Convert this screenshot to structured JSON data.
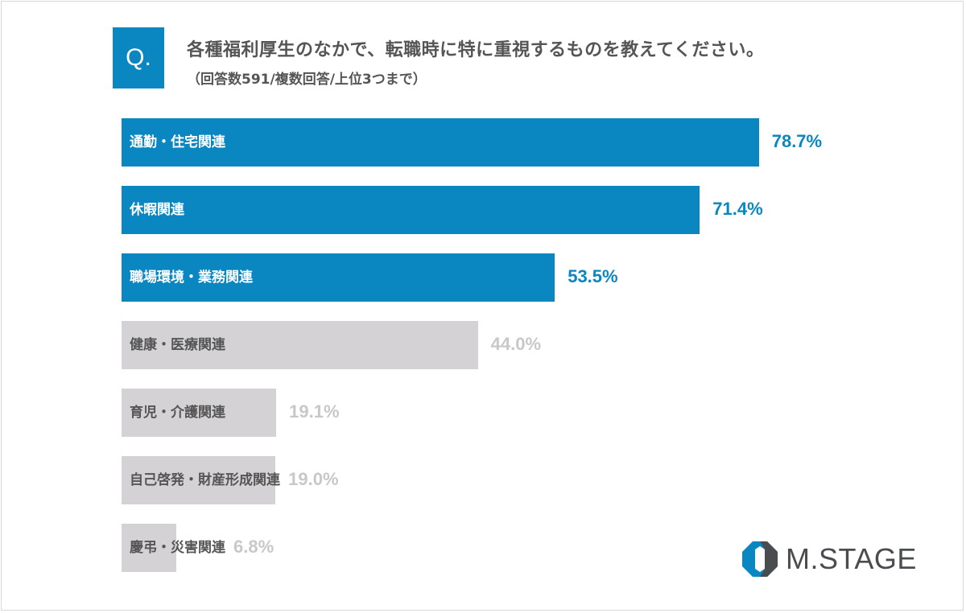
{
  "question_mark": "Q.",
  "chart_data": {
    "type": "bar",
    "orientation": "horizontal",
    "title": "各種福利厚生のなかで、転職時に特に重視するものを教えてください。",
    "subtitle": "（回答数591/複数回答/上位3つまで）",
    "categories": [
      "通勤・住宅関連",
      "休暇関連",
      "職場環境・業務関連",
      "健康・医療関連",
      "育児・介護関連",
      "自己啓発・財産形成関連",
      "慶弔・災害関連"
    ],
    "values": [
      78.7,
      71.4,
      53.5,
      44.0,
      19.1,
      19.0,
      6.8
    ],
    "value_labels": [
      "78.7%",
      "71.4%",
      "53.5%",
      "44.0%",
      "19.1%",
      "19.0%",
      "6.8%"
    ],
    "highlighted_count": 3,
    "xlim": [
      0,
      100
    ],
    "grid": false,
    "colors": {
      "highlight": "#0a87c1",
      "other": "#d4d2d4",
      "highlight_label": "#0a87c1",
      "other_label": "#c9c7c9",
      "bar_text_highlight": "#ffffff",
      "bar_text_other": "#555555"
    }
  },
  "logo": {
    "text": "M.STAGE",
    "colors": [
      "#0a87c1",
      "#4a4c50"
    ]
  }
}
